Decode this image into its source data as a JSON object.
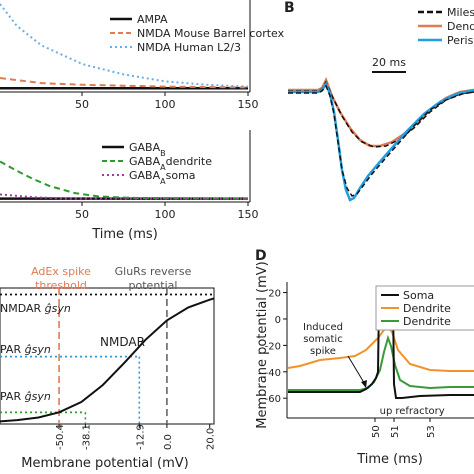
{
  "colors": {
    "black": "#111111",
    "orange": "#e07b52",
    "lightblue": "#6aaee8",
    "blue": "#1f9ee0",
    "green": "#2e9a2e",
    "darkgreen": "#3a9a3a",
    "purple": "#a13aa1",
    "dendorange": "#f2922a",
    "grid_grey": "#666666",
    "dot_blue": "#2a9bd8"
  },
  "panel_labels": {
    "b": "B",
    "d": "D"
  },
  "chart_data": [
    {
      "id": "A-top",
      "type": "line",
      "x_ticks": [
        "50",
        "100",
        "150"
      ],
      "series": [
        {
          "name": "AMPA",
          "style": "solid",
          "color": "black",
          "values": [
            [
              0,
              0.02
            ],
            [
              150,
              0.02
            ]
          ]
        },
        {
          "name": "NMDA Mouse Barrel cortex",
          "style": "dashed",
          "color": "orange",
          "values": [
            [
              0,
              0.14
            ],
            [
              25,
              0.08
            ],
            [
              50,
              0.06
            ],
            [
              75,
              0.05
            ],
            [
              100,
              0.04
            ],
            [
              150,
              0.03
            ]
          ]
        },
        {
          "name": "NMDA Human L2/3",
          "style": "dotted",
          "color": "lightblue",
          "values": [
            [
              0,
              1.0
            ],
            [
              10,
              0.75
            ],
            [
              25,
              0.52
            ],
            [
              50,
              0.3
            ],
            [
              75,
              0.18
            ],
            [
              100,
              0.1
            ],
            [
              125,
              0.06
            ],
            [
              150,
              0.04
            ]
          ]
        }
      ]
    },
    {
      "id": "A-bottom",
      "type": "line",
      "x_ticks": [
        "50",
        "100",
        "150"
      ],
      "xlabel": "Time (ms)",
      "series": [
        {
          "name_base": "GABA",
          "name_sub": "B",
          "style": "solid",
          "color": "black",
          "values": [
            [
              0,
              0.02
            ],
            [
              150,
              0.02
            ]
          ]
        },
        {
          "name_base": "GABA",
          "name_sub": "A",
          "name_suffix": "dendrite",
          "style": "dashed",
          "color": "green",
          "values": [
            [
              0,
              0.55
            ],
            [
              10,
              0.42
            ],
            [
              20,
              0.3
            ],
            [
              30,
              0.2
            ],
            [
              45,
              0.1
            ],
            [
              60,
              0.05
            ],
            [
              80,
              0.03
            ],
            [
              150,
              0.02
            ]
          ]
        },
        {
          "name_base": "GABA",
          "name_sub": "A",
          "name_suffix": "soma",
          "style": "dotted",
          "color": "purple",
          "values": [
            [
              0,
              0.08
            ],
            [
              20,
              0.04
            ],
            [
              40,
              0.02
            ],
            [
              150,
              0.02
            ]
          ]
        }
      ]
    },
    {
      "id": "B",
      "type": "line",
      "scale_bar": "20 ms",
      "legend_visible": [
        "Miles",
        "Dendr",
        "Periso"
      ],
      "series": [
        {
          "name": "Miles",
          "style": "dashed",
          "color": "black"
        },
        {
          "name": "Dendr",
          "style": "solid",
          "color": "orange"
        },
        {
          "name": "Periso",
          "style": "solid",
          "color": "blue"
        }
      ]
    },
    {
      "id": "C",
      "type": "line",
      "xlabel": "Membrane potential (mV)",
      "x_ticks": [
        "-50.4",
        "-38.1",
        "-12.9",
        "0.0",
        "20.0"
      ],
      "xlim": [
        -78,
        22
      ],
      "ylim": [
        0,
        1.05
      ],
      "annotations": {
        "adex_line1": "AdEx spike",
        "adex_line2": "threshold",
        "glurs_line1": "GluRs reverse",
        "glurs_line2": "potential",
        "nmdar_curve": "NMDAR",
        "row1": "NMDAR",
        "row2": "PAR",
        "row3": "PAR",
        "gsyn": "ĝsyn"
      },
      "series": [
        {
          "name": "NMDAR",
          "style": "solid",
          "color": "black",
          "values": [
            [
              -78,
              0.02
            ],
            [
              -70,
              0.03
            ],
            [
              -60,
              0.05
            ],
            [
              -50.4,
              0.09
            ],
            [
              -40,
              0.17
            ],
            [
              -30,
              0.3
            ],
            [
              -20,
              0.47
            ],
            [
              -10,
              0.65
            ],
            [
              0,
              0.8
            ],
            [
              10,
              0.9
            ],
            [
              20,
              0.96
            ],
            [
              22,
              0.97
            ]
          ]
        }
      ],
      "levels": [
        {
          "label": "NMDAR ĝsyn",
          "y": 1.0,
          "color": "black",
          "style": "dotted"
        },
        {
          "label": "PAR ĝsyn",
          "y": 0.52,
          "color": "dot_blue",
          "x_end": -12.9
        },
        {
          "label": "PAR ĝsyn",
          "y": 0.09,
          "color": "green",
          "x_end": -38.1
        }
      ],
      "verticals": [
        {
          "x": -50.4,
          "label": "AdEx spike threshold",
          "color": "orange",
          "style": "dashed"
        },
        {
          "x": 0.0,
          "label": "GluRs reverse potential",
          "color": "grid_grey",
          "style": "dashed"
        }
      ]
    },
    {
      "id": "D",
      "type": "line",
      "ylabel": "Membrane potential (mV)",
      "xlabel": "Time (ms)",
      "y_ticks": [
        "20",
        "0",
        "-20",
        "-40",
        "-60"
      ],
      "x_ticks": [
        "50",
        "51",
        "53"
      ],
      "ylim": [
        -75,
        28
      ],
      "annotations": {
        "induced1": "Induced",
        "induced2": "somatic",
        "induced3": "spike",
        "up": "up",
        "refractory": "refractory"
      },
      "legend": [
        "Soma",
        "Dendrite",
        "Dendrite"
      ],
      "series": [
        {
          "name": "Soma",
          "color": "black"
        },
        {
          "name": "Dendrite",
          "color": "dendorange"
        },
        {
          "name": "Dendrite",
          "color": "darkgreen"
        }
      ]
    }
  ]
}
